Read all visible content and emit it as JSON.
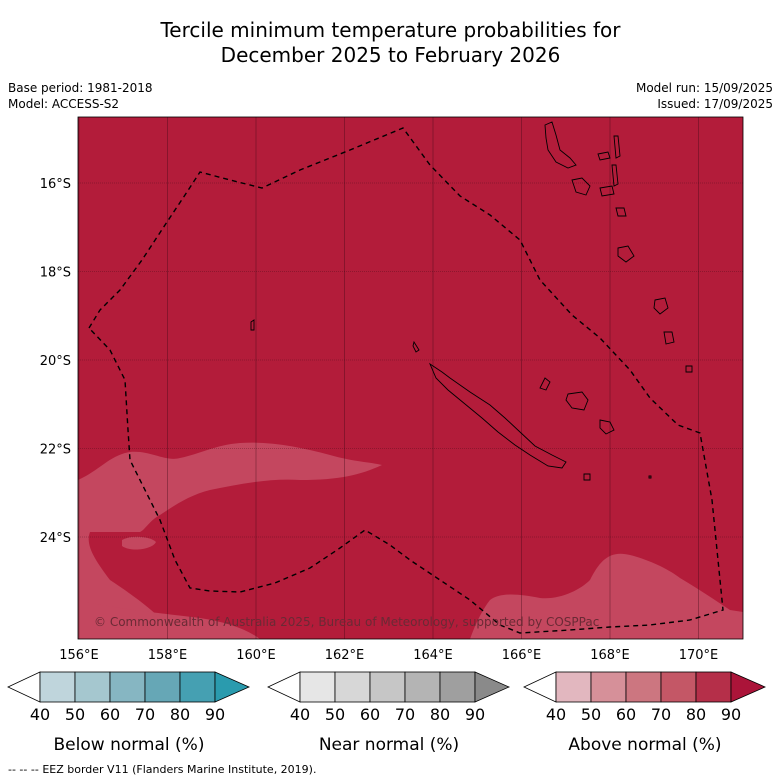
{
  "title": {
    "line1": "Tercile minimum temperature probabilities for",
    "line2": "December 2025 to February 2026"
  },
  "meta": {
    "base_period": "Base period: 1981-2018",
    "model": "Model: ACCESS-S2",
    "model_run": "Model run: 15/09/2025",
    "issued": "Issued: 17/09/2025"
  },
  "map": {
    "lon_ticks": [
      "156°E",
      "158°E",
      "160°E",
      "162°E",
      "164°E",
      "166°E",
      "168°E",
      "170°E"
    ],
    "lat_ticks": [
      "16°S",
      "18°S",
      "20°S",
      "22°S",
      "24°S"
    ],
    "copyright": "© Commonwealth of Australia 2025, Bureau of Meteorology, supported by COSPPac",
    "colors": {
      "above_80": "#b31c3a",
      "above_70": "#c4475f",
      "border": "#000000"
    }
  },
  "colorbars": [
    {
      "label": "Below normal (%)",
      "ticks": [
        "40",
        "50",
        "60",
        "70",
        "80",
        "90"
      ],
      "colors": [
        "#ffffff",
        "#bfd5dc",
        "#a5c7cf",
        "#86b6c2",
        "#66a7b6",
        "#45a0b2",
        "#2a9bae"
      ]
    },
    {
      "label": "Near normal (%)",
      "ticks": [
        "40",
        "50",
        "60",
        "70",
        "80",
        "90"
      ],
      "colors": [
        "#ffffff",
        "#e6e6e6",
        "#d7d7d7",
        "#c6c6c6",
        "#b4b4b4",
        "#9f9f9f",
        "#8a8a8a"
      ]
    },
    {
      "label": "Above normal (%)",
      "ticks": [
        "40",
        "50",
        "60",
        "70",
        "80",
        "90"
      ],
      "colors": [
        "#ffffff",
        "#e2b7bf",
        "#d69099",
        "#cc7680",
        "#c45766",
        "#b52f49",
        "#ab1439"
      ]
    }
  ],
  "legend": {
    "eez_symbol": "--  --  --",
    "eez_text": "EEZ border V11 (Flanders Marine Institute, 2019)."
  }
}
